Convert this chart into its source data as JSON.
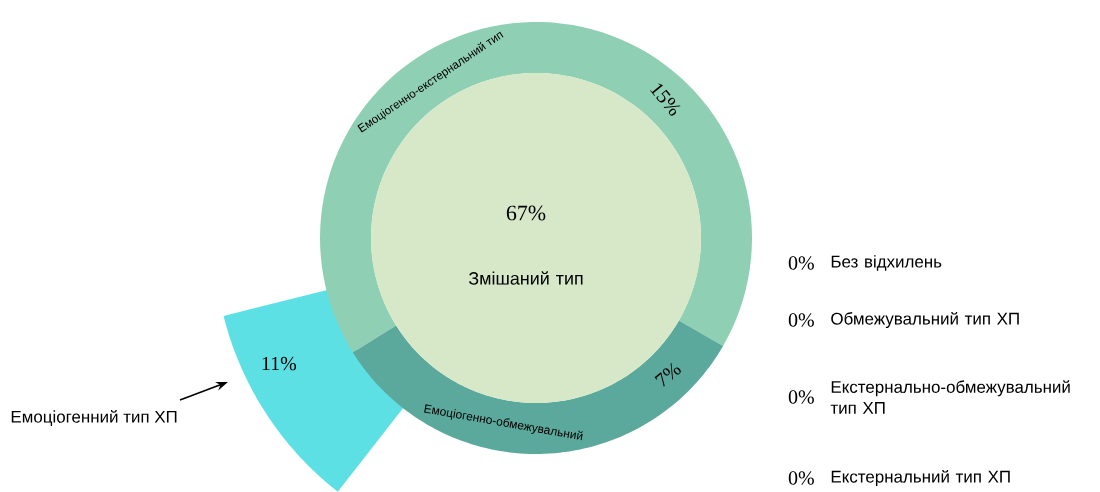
{
  "chart_data": {
    "type": "other",
    "categories": [
      "Змішаний тип",
      "Емоціогенно-екстернальний тип",
      "Емоціогенно-обмежувальний",
      "Емоціогенний тип ХП",
      "Без відхилень",
      "Обмежувальний тип ХП",
      "Екстернально-обмежувальний тип ХП",
      "Екстернальний тип ХП"
    ],
    "values": [
      67,
      15,
      7,
      11,
      0,
      0,
      0,
      0
    ],
    "value_labels": [
      "67%",
      "15%",
      "7%",
      "11%",
      "0%",
      "0%",
      "0%",
      "0%"
    ],
    "colors": [
      "#d6e8c8",
      "#8fcfb3",
      "#5ba99c",
      "#5ce0e4",
      null,
      null,
      null,
      null
    ]
  }
}
